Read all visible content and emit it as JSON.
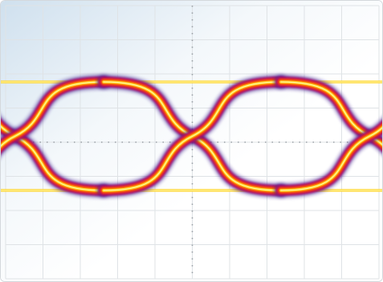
{
  "chart_data": {
    "type": "eye-diagram",
    "title": "",
    "xlabel": "",
    "ylabel": "",
    "grid": true,
    "grid_divisions": {
      "x": 10,
      "y": 8
    },
    "unit_intervals_shown": 2,
    "x_range_ui": [
      -0.08,
      2.08
    ],
    "logic_levels": {
      "high": 1.0,
      "low": 0.0
    },
    "crossing_level": 0.5,
    "crossing_points_ui": [
      0.0,
      1.0,
      2.0
    ],
    "eye_opening": {
      "height_fraction": 0.8,
      "width_ui": 0.72
    },
    "intensity_colormap": [
      "#3a1a8c",
      "#a0187a",
      "#e0102a",
      "#ff7a00",
      "#ffd21f",
      "#fff7b0"
    ],
    "background_gradient": "#cfe0ee"
  }
}
